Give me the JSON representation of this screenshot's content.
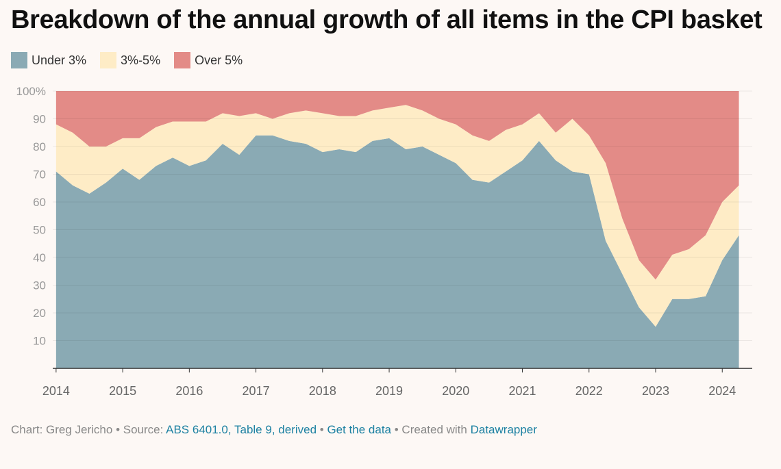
{
  "chart_data": {
    "type": "area",
    "stacked": true,
    "title": "Breakdown of the annual growth of all items in the CPI basket",
    "y_unit": "%",
    "ylim": [
      0,
      100
    ],
    "y_ticks": [
      "10",
      "20",
      "30",
      "40",
      "50",
      "60",
      "70",
      "80",
      "90",
      "100%"
    ],
    "x_ticks": [
      "2014",
      "2015",
      "2016",
      "2017",
      "2018",
      "2019",
      "2020",
      "2021",
      "2022",
      "2023",
      "2024"
    ],
    "xlim": [
      2013.95,
      2024.45
    ],
    "grid": true,
    "legend_position": "top-left",
    "x": [
      2014.0,
      2014.25,
      2014.5,
      2014.75,
      2015.0,
      2015.25,
      2015.5,
      2015.75,
      2016.0,
      2016.25,
      2016.5,
      2016.75,
      2017.0,
      2017.25,
      2017.5,
      2017.75,
      2018.0,
      2018.25,
      2018.5,
      2018.75,
      2019.0,
      2019.25,
      2019.5,
      2019.75,
      2020.0,
      2020.25,
      2020.5,
      2020.75,
      2021.0,
      2021.25,
      2021.5,
      2021.75,
      2022.0,
      2022.25,
      2022.5,
      2022.75,
      2023.0,
      2023.25,
      2023.5,
      2023.75,
      2024.0,
      2024.25
    ],
    "series": [
      {
        "name": "Under 3%",
        "color": "#8aaab4",
        "values": [
          71,
          66,
          63,
          67,
          72,
          68,
          73,
          76,
          73,
          75,
          81,
          77,
          84,
          84,
          82,
          81,
          78,
          79,
          78,
          82,
          83,
          79,
          80,
          77,
          74,
          68,
          67,
          71,
          75,
          82,
          75,
          71,
          70,
          46,
          34,
          22,
          15,
          25,
          25,
          26,
          39,
          48
        ]
      },
      {
        "name": "3%-5%",
        "color": "#feecc6",
        "values": [
          17,
          19,
          17,
          13,
          11,
          15,
          14,
          13,
          16,
          14,
          11,
          14,
          8,
          6,
          10,
          12,
          14,
          12,
          13,
          11,
          11,
          16,
          13,
          13,
          14,
          16,
          15,
          15,
          13,
          10,
          10,
          19,
          14,
          28,
          20,
          17,
          17,
          16,
          18,
          22,
          21,
          18
        ]
      },
      {
        "name": "Over 5%",
        "color": "#e38b87",
        "values": [
          12,
          15,
          20,
          20,
          17,
          17,
          13,
          11,
          11,
          11,
          8,
          9,
          8,
          10,
          8,
          7,
          8,
          9,
          9,
          7,
          6,
          5,
          7,
          10,
          12,
          16,
          18,
          14,
          12,
          8,
          15,
          10,
          16,
          26,
          46,
          61,
          68,
          59,
          57,
          52,
          40,
          34
        ]
      }
    ],
    "source": "Chart: Greg Jericho • Source: ABS 6401.0, Table 9, derived • Get the data • Created with Datawrapper"
  },
  "footer": {
    "credit": "Chart: Greg Jericho",
    "sep": " • ",
    "source_prefix": "Source: ",
    "source_link": "ABS 6401.0, Table 9, derived",
    "get_data": "Get the data",
    "created_with": "Created with ",
    "datawrapper": "Datawrapper"
  }
}
